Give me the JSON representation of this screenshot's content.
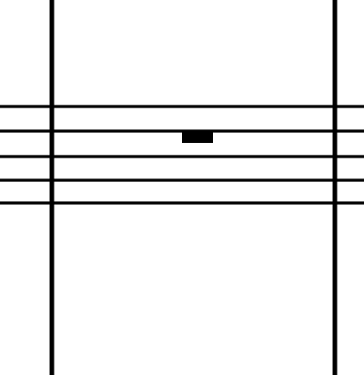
{
  "scene": {
    "background_color": "#ffffff",
    "ink_color": "#000000",
    "staff": {
      "line_count": 5,
      "note": "whole rest"
    },
    "barlines": {
      "count": 2
    }
  }
}
